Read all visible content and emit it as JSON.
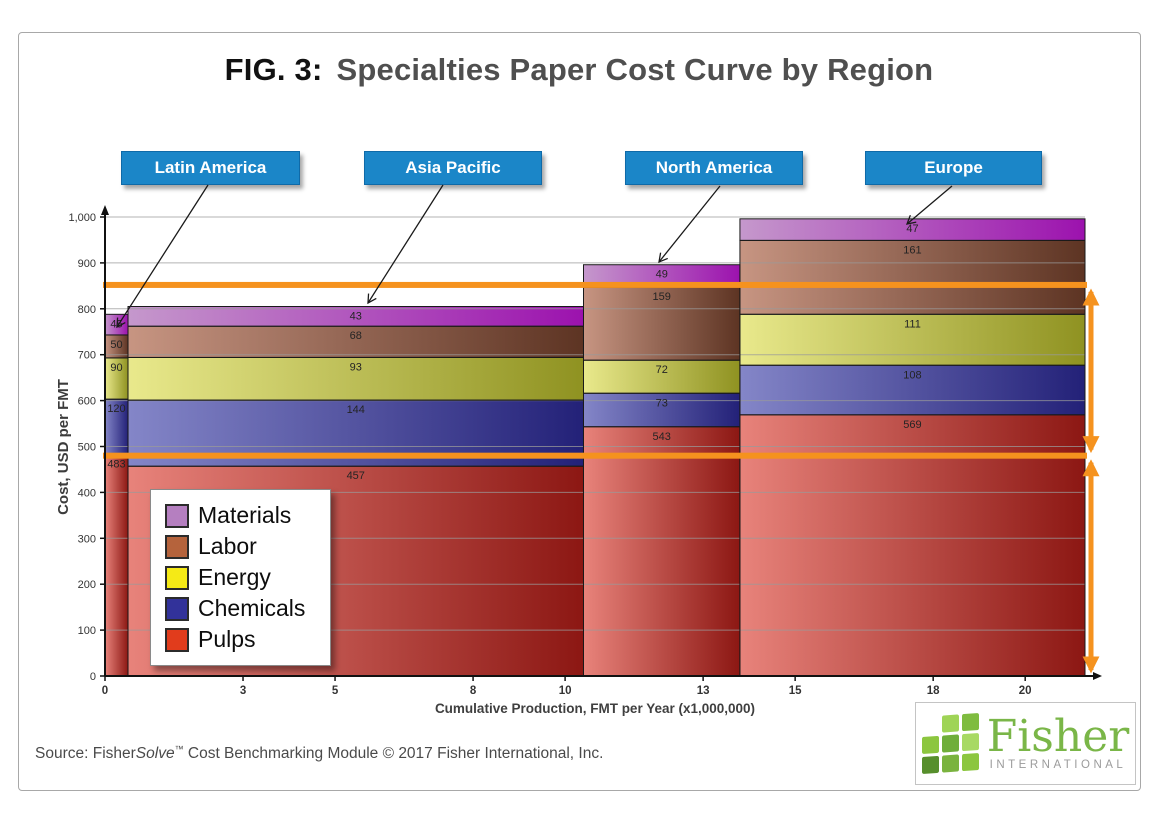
{
  "title": {
    "fig_no": "FIG. 3:",
    "text": "Specialties Paper Cost Curve by Region"
  },
  "colors": {
    "callout_bg": "#1b86c8",
    "orange": "#f5921e",
    "axis": "#1a1a1a",
    "gridline": "#9a9a9a",
    "logo_greens": [
      "#9fd456",
      "#7fbc3f",
      "#8cc63f",
      "#6fae3a",
      "#a8d964",
      "#578f2c",
      "#7ab33e",
      "#8cc63f"
    ]
  },
  "chart_data": {
    "type": "bar",
    "variant": "stacked cost curve, variable-width bars",
    "title": "FIG. 3: Specialties Paper Cost Curve by Region",
    "xlabel": "Cumulative Production, FMT per Year (x1,000,000)",
    "ylabel": "Cost, USD per FMT",
    "ylim": [
      0,
      1000
    ],
    "xlim": [
      0,
      21.3
    ],
    "grid": true,
    "yticks": [
      0,
      100,
      200,
      300,
      400,
      500,
      600,
      700,
      800,
      900,
      1000
    ],
    "ytick_labels": [
      "0",
      "100",
      "200",
      "300",
      "400",
      "500",
      "600",
      "700",
      "800",
      "900",
      "1,000"
    ],
    "xticks": [
      0,
      3,
      5,
      8,
      10,
      13,
      15,
      18,
      20
    ],
    "stack_order_bottom_to_top": [
      "Pulps",
      "Chemicals",
      "Energy",
      "Labor",
      "Materials"
    ],
    "regions": [
      {
        "name": "Latin America",
        "x_start": 0,
        "x_end": 0.5,
        "segments": {
          "Materials": 45,
          "Labor": 50,
          "Energy": 90,
          "Chemicals": 120,
          "Pulps": 483
        }
      },
      {
        "name": "Asia Pacific",
        "x_start": 0.5,
        "x_end": 10.4,
        "segments": {
          "Materials": 43,
          "Labor": 68,
          "Energy": 93,
          "Chemicals": 144,
          "Pulps": 457
        }
      },
      {
        "name": "North America",
        "x_start": 10.4,
        "x_end": 13.8,
        "segments": {
          "Materials": 49,
          "Labor": 159,
          "Energy": 72,
          "Chemicals": 73,
          "Pulps": 543
        }
      },
      {
        "name": "Europe",
        "x_start": 13.8,
        "x_end": 21.3,
        "segments": {
          "Materials": 47,
          "Labor": 161,
          "Energy": 111,
          "Chemicals": 108,
          "Pulps": 569
        }
      }
    ],
    "legend": [
      {
        "label": "Materials",
        "color": "#b57fc0",
        "bar_gradient": [
          "#c598cc",
          "#9c12ae"
        ]
      },
      {
        "label": "Labor",
        "color": "#b5633c",
        "bar_gradient": [
          "#c79582",
          "#5d3423"
        ]
      },
      {
        "label": "Energy",
        "color": "#f5ea16",
        "bar_gradient": [
          "#e9e98c",
          "#8f9221"
        ]
      },
      {
        "label": "Chemicals",
        "color": "#32329a",
        "bar_gradient": [
          "#8486c8",
          "#232178"
        ]
      },
      {
        "label": "Pulps",
        "color": "#e13c1c",
        "bar_gradient": [
          "#e8837b",
          "#8c1713"
        ]
      }
    ],
    "legend_position": "inside plot, lower left",
    "annotations": {
      "hlines": [
        852,
        480
      ],
      "range_arrows": [
        {
          "from": 852,
          "to": 480
        },
        {
          "from": 480,
          "to": 0
        }
      ]
    }
  },
  "source": {
    "prefix": "Source: Fisher",
    "solve": "Solve",
    "tm": "™",
    "rest": " Cost Benchmarking Module © 2017 Fisher International, Inc."
  },
  "logo": {
    "name": "Fisher",
    "subtitle": "INTERNATIONAL"
  }
}
